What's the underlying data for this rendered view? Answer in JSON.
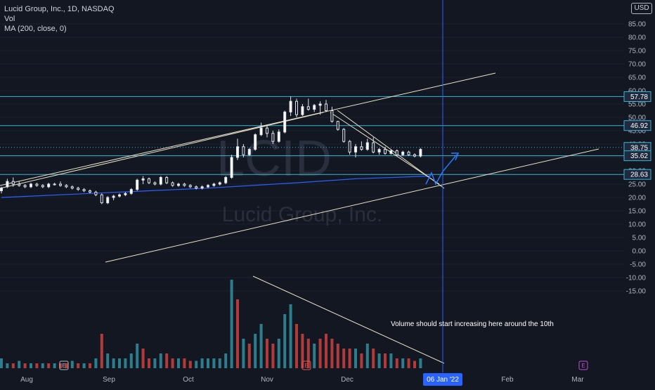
{
  "legend": {
    "title": "Lucid Group, Inc., 1D, NASDAQ",
    "vol": "Vol",
    "ma": "MA (200, close, 0)"
  },
  "currency": "USD",
  "watermark": {
    "ticker": "LCID",
    "name": "Lucid Group, Inc."
  },
  "annotation": "Volume should start increasing here around the 10th",
  "colors": {
    "background": "#131722",
    "up": "#ffffff",
    "down": "#ffffff",
    "vol_up": "#2e7d8c",
    "vol_down": "#b13a3a",
    "hline": "#38b6d8",
    "trend": "#e8e3c8",
    "ma": "#2962ff",
    "projection": "#2979ff",
    "label_bg": "#1f2a3f",
    "crosshair": "#2962ff"
  },
  "chart_data": {
    "type": "candlestick",
    "y_ticks": [
      "85.00",
      "80.00",
      "75.00",
      "70.00",
      "65.00",
      "60.00",
      "55.00",
      "50.00",
      "45.00",
      "40.00",
      "35.00",
      "30.00",
      "25.00",
      "20.00",
      "15.00",
      "10.00",
      "5.00",
      "0.00",
      "-5.00",
      "-10.00",
      "-15.00"
    ],
    "y_range": [
      -17,
      88
    ],
    "x_labels": [
      "Aug",
      "Sep",
      "Oct",
      "Nov",
      "Dec",
      "Feb",
      "Mar"
    ],
    "x_active_label": "06 Jan '22",
    "price_levels": [
      {
        "value": 57.78,
        "label": "57.78"
      },
      {
        "value": 46.92,
        "label": "46.92"
      },
      {
        "value": 38.75,
        "label": "38.75",
        "dotted": true
      },
      {
        "value": 35.62,
        "label": "35.62"
      },
      {
        "value": 28.63,
        "label": "28.63"
      }
    ],
    "candles": [
      [
        0,
        22.5,
        24.0,
        21.5,
        23.5
      ],
      [
        4,
        24.0,
        27.0,
        23.5,
        26.0
      ],
      [
        8,
        26.0,
        27.5,
        24.0,
        25.0
      ],
      [
        12,
        25.0,
        26.0,
        24.0,
        24.5
      ],
      [
        16,
        24.5,
        25.0,
        23.5,
        24.0
      ],
      [
        20,
        24.0,
        25.5,
        23.5,
        25.0
      ],
      [
        24,
        25.0,
        25.5,
        24.0,
        24.5
      ],
      [
        28,
        24.5,
        25.0,
        23.5,
        24.0
      ],
      [
        32,
        24.0,
        25.5,
        23.5,
        25.0
      ],
      [
        36,
        25.0,
        25.5,
        24.5,
        25.0
      ],
      [
        40,
        25.0,
        26.0,
        24.0,
        24.5
      ],
      [
        44,
        24.5,
        25.0,
        23.5,
        24.0
      ],
      [
        48,
        24.0,
        24.5,
        23.0,
        23.5
      ],
      [
        52,
        23.5,
        24.0,
        22.5,
        23.0
      ],
      [
        56,
        23.0,
        23.5,
        22.0,
        22.5
      ],
      [
        60,
        22.5,
        23.0,
        21.5,
        22.0
      ],
      [
        64,
        22.0,
        22.5,
        20.5,
        21.0
      ],
      [
        68,
        21.0,
        21.5,
        17.5,
        18.0
      ],
      [
        72,
        18.0,
        20.5,
        17.5,
        20.0
      ],
      [
        76,
        20.0,
        21.0,
        19.0,
        20.5
      ],
      [
        80,
        20.5,
        21.5,
        20.0,
        21.0
      ],
      [
        84,
        21.0,
        22.0,
        20.5,
        21.5
      ],
      [
        88,
        21.5,
        23.5,
        21.0,
        23.0
      ],
      [
        92,
        23.0,
        27.0,
        22.5,
        26.5
      ],
      [
        96,
        26.5,
        28.0,
        25.0,
        27.0
      ],
      [
        100,
        27.0,
        27.5,
        25.0,
        25.5
      ],
      [
        104,
        25.5,
        26.0,
        24.5,
        25.0
      ],
      [
        108,
        25.0,
        28.0,
        24.5,
        27.5
      ],
      [
        112,
        27.5,
        28.0,
        25.0,
        25.5
      ],
      [
        116,
        25.5,
        26.0,
        24.0,
        24.5
      ],
      [
        120,
        24.5,
        25.5,
        24.0,
        25.0
      ],
      [
        124,
        25.0,
        25.5,
        24.0,
        24.5
      ],
      [
        128,
        24.5,
        25.0,
        23.5,
        24.0
      ],
      [
        132,
        24.0,
        24.5,
        23.0,
        23.5
      ],
      [
        136,
        23.5,
        24.5,
        23.0,
        24.0
      ],
      [
        140,
        24.0,
        25.0,
        23.5,
        24.5
      ],
      [
        144,
        24.5,
        25.5,
        24.0,
        25.0
      ],
      [
        148,
        25.0,
        26.0,
        24.5,
        25.5
      ],
      [
        152,
        25.5,
        28.0,
        25.0,
        27.5
      ],
      [
        156,
        27.5,
        36.0,
        27.0,
        35.0
      ],
      [
        160,
        35.0,
        42.0,
        34.0,
        39.0
      ],
      [
        164,
        39.0,
        40.0,
        35.0,
        36.0
      ],
      [
        168,
        36.0,
        38.5,
        35.5,
        38.0
      ],
      [
        172,
        38.0,
        44.0,
        37.5,
        43.5
      ],
      [
        176,
        43.5,
        48.0,
        43.0,
        46.0
      ],
      [
        180,
        46.0,
        47.0,
        42.5,
        44.0
      ],
      [
        184,
        44.0,
        45.0,
        40.0,
        41.0
      ],
      [
        188,
        41.0,
        45.5,
        40.5,
        44.5
      ],
      [
        192,
        44.5,
        52.5,
        44.0,
        52.0
      ],
      [
        196,
        52.0,
        57.8,
        50.5,
        56.0
      ],
      [
        200,
        56.0,
        57.0,
        50.0,
        51.0
      ],
      [
        204,
        51.0,
        55.0,
        50.5,
        54.0
      ],
      [
        208,
        54.0,
        57.0,
        52.5,
        53.0
      ],
      [
        212,
        53.0,
        55.0,
        52.0,
        54.5
      ],
      [
        216,
        54.5,
        56.0,
        51.0,
        55.0
      ],
      [
        220,
        55.0,
        56.5,
        52.0,
        52.5
      ],
      [
        224,
        52.5,
        54.0,
        48.0,
        48.5
      ],
      [
        228,
        48.5,
        48.7,
        45.0,
        45.5
      ],
      [
        232,
        45.5,
        46.0,
        40.5,
        41.0
      ],
      [
        236,
        41.0,
        41.5,
        36.0,
        37.0
      ],
      [
        240,
        37.0,
        40.0,
        35.0,
        39.0
      ],
      [
        244,
        39.0,
        41.0,
        37.5,
        38.0
      ],
      [
        248,
        38.0,
        42.0,
        37.5,
        40.5
      ],
      [
        252,
        40.5,
        42.5,
        36.5,
        37.0
      ],
      [
        256,
        37.0,
        38.5,
        36.0,
        38.0
      ],
      [
        260,
        38.0,
        39.0,
        36.0,
        36.5
      ],
      [
        264,
        36.5,
        38.0,
        36.0,
        37.5
      ],
      [
        268,
        37.5,
        38.0,
        35.5,
        36.0
      ],
      [
        272,
        36.0,
        37.5,
        35.5,
        37.0
      ],
      [
        276,
        37.0,
        37.5,
        35.5,
        36.0
      ],
      [
        280,
        36.0,
        36.5,
        35.0,
        35.5
      ],
      [
        284,
        35.5,
        38.5,
        35.0,
        38.0
      ]
    ],
    "volume": [
      [
        0,
        2,
        "up"
      ],
      [
        4,
        1,
        "up"
      ],
      [
        8,
        1,
        "down"
      ],
      [
        12,
        1.5,
        "up"
      ],
      [
        16,
        1,
        "down"
      ],
      [
        20,
        1,
        "up"
      ],
      [
        24,
        1,
        "down"
      ],
      [
        28,
        1,
        "up"
      ],
      [
        32,
        1,
        "down"
      ],
      [
        36,
        1,
        "up"
      ],
      [
        40,
        1,
        "down"
      ],
      [
        44,
        1,
        "down"
      ],
      [
        48,
        1.5,
        "up"
      ],
      [
        52,
        1,
        "down"
      ],
      [
        56,
        1,
        "up"
      ],
      [
        60,
        1,
        "down"
      ],
      [
        64,
        2,
        "up"
      ],
      [
        68,
        7,
        "down"
      ],
      [
        72,
        3,
        "up"
      ],
      [
        76,
        2,
        "up"
      ],
      [
        80,
        2,
        "up"
      ],
      [
        84,
        2,
        "up"
      ],
      [
        88,
        3,
        "up"
      ],
      [
        92,
        5,
        "up"
      ],
      [
        96,
        4,
        "down"
      ],
      [
        100,
        2,
        "down"
      ],
      [
        104,
        2,
        "up"
      ],
      [
        108,
        3,
        "up"
      ],
      [
        112,
        3,
        "down"
      ],
      [
        116,
        2,
        "down"
      ],
      [
        120,
        2,
        "up"
      ],
      [
        124,
        2,
        "down"
      ],
      [
        128,
        1.5,
        "down"
      ],
      [
        132,
        1.5,
        "up"
      ],
      [
        136,
        2,
        "up"
      ],
      [
        140,
        2,
        "up"
      ],
      [
        144,
        2,
        "up"
      ],
      [
        148,
        2,
        "up"
      ],
      [
        152,
        3,
        "up"
      ],
      [
        156,
        18,
        "up"
      ],
      [
        160,
        14,
        "down"
      ],
      [
        164,
        6,
        "up"
      ],
      [
        168,
        5,
        "down"
      ],
      [
        172,
        7,
        "up"
      ],
      [
        176,
        9,
        "up"
      ],
      [
        180,
        6,
        "down"
      ],
      [
        184,
        5,
        "down"
      ],
      [
        188,
        6,
        "up"
      ],
      [
        192,
        11,
        "up"
      ],
      [
        196,
        13,
        "up"
      ],
      [
        200,
        9,
        "down"
      ],
      [
        204,
        7,
        "down"
      ],
      [
        208,
        6,
        "down"
      ],
      [
        212,
        5,
        "up"
      ],
      [
        216,
        6,
        "down"
      ],
      [
        220,
        7,
        "down"
      ],
      [
        224,
        6,
        "down"
      ],
      [
        228,
        5,
        "down"
      ],
      [
        232,
        4,
        "down"
      ],
      [
        236,
        4,
        "down"
      ],
      [
        240,
        4,
        "up"
      ],
      [
        244,
        3,
        "down"
      ],
      [
        248,
        5,
        "up"
      ],
      [
        252,
        4,
        "down"
      ],
      [
        256,
        3,
        "up"
      ],
      [
        260,
        3,
        "down"
      ],
      [
        264,
        3,
        "up"
      ],
      [
        268,
        2,
        "down"
      ],
      [
        272,
        2,
        "up"
      ],
      [
        276,
        2,
        "down"
      ],
      [
        280,
        1.5,
        "down"
      ],
      [
        284,
        2,
        "up"
      ]
    ],
    "ma": [
      [
        0,
        20
      ],
      [
        60,
        21.5
      ],
      [
        100,
        22.5
      ],
      [
        140,
        23.5
      ],
      [
        200,
        25.5
      ],
      [
        240,
        27
      ],
      [
        290,
        28
      ]
    ]
  }
}
